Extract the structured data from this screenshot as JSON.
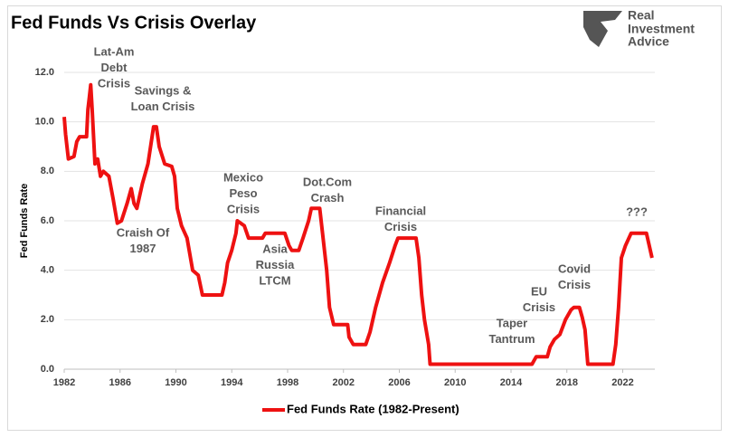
{
  "chart_data": {
    "type": "line",
    "title": "Fed Funds Vs Crisis Overlay",
    "logo": [
      "Real",
      "Investment",
      "Advice"
    ],
    "y_label": "Fed Funds Rate",
    "xlim": [
      1982,
      2024.3
    ],
    "xticks": [
      1982,
      1986,
      1990,
      1994,
      1998,
      2002,
      2006,
      2010,
      2014,
      2018,
      2022
    ],
    "ylim": [
      0,
      12
    ],
    "yticks": [
      {
        "value": 0,
        "label": "0.0"
      },
      {
        "value": 2,
        "label": "2.0"
      },
      {
        "value": 4,
        "label": "4.0"
      },
      {
        "value": 6,
        "label": "6.0"
      },
      {
        "value": 8,
        "label": "8.0"
      },
      {
        "value": 10,
        "label": "10.0"
      },
      {
        "value": 12,
        "label": "12.0"
      }
    ],
    "grid": true,
    "legend": "bottom",
    "annotations": [
      [
        "Lat-Am",
        "Debt",
        "Crisis"
      ],
      [
        "Savings &",
        "Loan Crisis"
      ],
      [
        "Craish Of",
        "1987"
      ],
      [
        "Mexico",
        "Peso",
        "Crisis"
      ],
      [
        "Asia",
        "Russia",
        "LTCM"
      ],
      [
        "Dot.Com",
        "Crash"
      ],
      [
        "Financial",
        "Crisis"
      ],
      [
        "Taper",
        "Tantrum"
      ],
      [
        "EU",
        "Crisis"
      ],
      [
        "Covid",
        "Crisis"
      ],
      [
        "???"
      ]
    ],
    "series": [
      {
        "name": "Fed Funds Rate (1982-Present)",
        "color": "#ee1111",
        "x": [
          1982.0,
          1982.1,
          1982.3,
          1982.7,
          1982.9,
          1983.1,
          1983.6,
          1983.7,
          1983.8,
          1983.9,
          1984.0,
          1984.2,
          1984.4,
          1984.6,
          1984.8,
          1985.2,
          1985.5,
          1985.8,
          1986.1,
          1986.5,
          1986.8,
          1987.0,
          1987.2,
          1987.6,
          1988.0,
          1988.4,
          1988.6,
          1988.8,
          1989.2,
          1989.7,
          1989.9,
          1990.1,
          1990.4,
          1990.8,
          1991.2,
          1991.6,
          1991.9,
          1993.3,
          1993.5,
          1993.7,
          1994.0,
          1994.3,
          1994.4,
          1994.9,
          1995.2,
          1996.2,
          1996.4,
          1997.8,
          1998.1,
          1998.3,
          1998.8,
          1999.1,
          1999.5,
          1999.7,
          2000.3,
          2000.5,
          2000.8,
          2001.0,
          2001.3,
          2002.3,
          2002.4,
          2002.7,
          2003.6,
          2003.9,
          2004.3,
          2004.8,
          2005.3,
          2005.7,
          2005.9,
          2007.2,
          2007.4,
          2007.6,
          2007.8,
          2008.1,
          2008.2,
          2015.5,
          2015.8,
          2016.6,
          2016.8,
          2017.1,
          2017.5,
          2017.9,
          2018.3,
          2018.5,
          2018.9,
          2019.1,
          2019.3,
          2019.5,
          2021.3,
          2021.5,
          2021.7,
          2021.9,
          2022.2,
          2022.6,
          2023.7,
          2023.9,
          2024.1
        ],
        "values": [
          10.2,
          9.5,
          8.5,
          8.6,
          9.2,
          9.4,
          9.4,
          10.5,
          11.0,
          11.5,
          10.5,
          8.3,
          8.5,
          7.8,
          8.0,
          7.8,
          6.9,
          5.9,
          6.0,
          6.7,
          7.3,
          6.7,
          6.5,
          7.5,
          8.3,
          9.8,
          9.8,
          9.0,
          8.3,
          8.2,
          7.8,
          6.5,
          5.8,
          5.3,
          4.0,
          3.8,
          3.0,
          3.0,
          3.5,
          4.3,
          4.8,
          5.5,
          6.0,
          5.8,
          5.3,
          5.3,
          5.5,
          5.5,
          5.0,
          4.8,
          4.8,
          5.3,
          6.0,
          6.5,
          6.5,
          5.5,
          4.0,
          2.5,
          1.8,
          1.8,
          1.3,
          1.0,
          1.0,
          1.5,
          2.5,
          3.5,
          4.3,
          5.0,
          5.3,
          5.3,
          4.5,
          3.0,
          2.0,
          1.0,
          0.2,
          0.2,
          0.5,
          0.5,
          0.9,
          1.2,
          1.4,
          2.0,
          2.4,
          2.5,
          2.5,
          2.1,
          1.6,
          0.2,
          0.2,
          1.0,
          2.5,
          4.5,
          5.0,
          5.5,
          5.5,
          5.0,
          4.5
        ]
      }
    ]
  }
}
